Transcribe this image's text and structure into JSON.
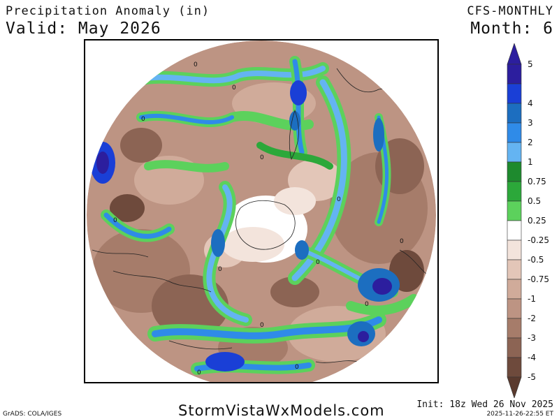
{
  "header": {
    "title": "Precipitation Anomaly (in)",
    "valid": "Valid: May 2026",
    "model": "CFS-MONTHLY",
    "month": "Month: 6"
  },
  "map": {
    "projection": "north-polar-stereographic",
    "field": "precipitation anomaly",
    "zero_contour_label": "0"
  },
  "legend": {
    "levels": [
      {
        "label": "5",
        "color": "#2c1e9e"
      },
      {
        "label": "4",
        "color": "#1a3fd6"
      },
      {
        "label": "3",
        "color": "#1c6ec0"
      },
      {
        "label": "2",
        "color": "#2f8be8"
      },
      {
        "label": "1",
        "color": "#64b4f2"
      },
      {
        "label": "0.75",
        "color": "#1e8a2e"
      },
      {
        "label": "0.5",
        "color": "#2ca83a"
      },
      {
        "label": "0.25",
        "color": "#5cd15c"
      },
      {
        "label": "-0.25",
        "color": "#ffffff"
      },
      {
        "label": "-0.5",
        "color": "#f3e4dc"
      },
      {
        "label": "-0.75",
        "color": "#e3c6b8"
      },
      {
        "label": "-1",
        "color": "#d0ab9a"
      },
      {
        "label": "-2",
        "color": "#bd9483"
      },
      {
        "label": "-3",
        "color": "#a67c6a"
      },
      {
        "label": "-4",
        "color": "#8c6454"
      },
      {
        "label": "-5",
        "color": "#6e4a3c"
      }
    ],
    "top_arrow_color": "#2c1e9e",
    "bottom_arrow_color": "#5a3a2e"
  },
  "footer": {
    "brand": "StormVistaWxModels.com",
    "grads": "GrADS: COLA/IGES",
    "init": "Init: 18z Wed 26 Nov 2025",
    "timestamp": "2025-11-26-22:55 ET"
  }
}
